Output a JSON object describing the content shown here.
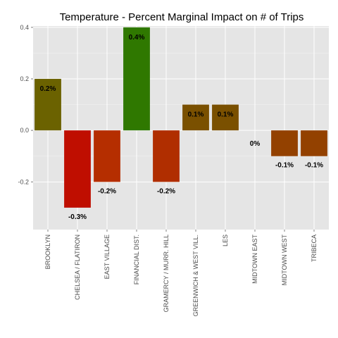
{
  "chart_data": {
    "type": "bar",
    "title": "Temperature - Percent Marginal Impact on # of Trips",
    "xlabel": "",
    "ylabel": "",
    "categories": [
      "BROOKLYN",
      "CHELSEA / FLATIRON",
      "EAST VILLAGE",
      "FINANCIAL DIST.",
      "GRAMERCY / MURR. HILL",
      "GREENWICH & WEST VILL.",
      "LES",
      "MIDTOWN EAST",
      "MIDTOWN WEST",
      "TRIBECA"
    ],
    "values": [
      0.2,
      -0.3,
      -0.2,
      0.4,
      -0.2,
      0.1,
      0.1,
      0,
      -0.1,
      -0.1
    ],
    "data_labels": [
      "0.2%",
      "-0.3%",
      "-0.2%",
      "0.4%",
      "-0.2%",
      "0.1%",
      "0.1%",
      "0%",
      "-0.1%",
      "-0.1%"
    ],
    "colors": [
      "#6b6200",
      "#bf0e00",
      "#b52e00",
      "#2f7800",
      "#b02e00",
      "#7a5000",
      "#7a5000",
      "#915800",
      "#934100",
      "#934100"
    ],
    "yticks": [
      -0.2,
      0.0,
      0.2,
      0.4
    ],
    "ytick_labels": [
      "-0.2",
      "0.0",
      "0.2",
      "0.4"
    ],
    "ylim": [
      -0.385,
      0.405
    ],
    "grid": true,
    "panel_background": "#e5e5e5",
    "grid_color": "#ffffff"
  }
}
